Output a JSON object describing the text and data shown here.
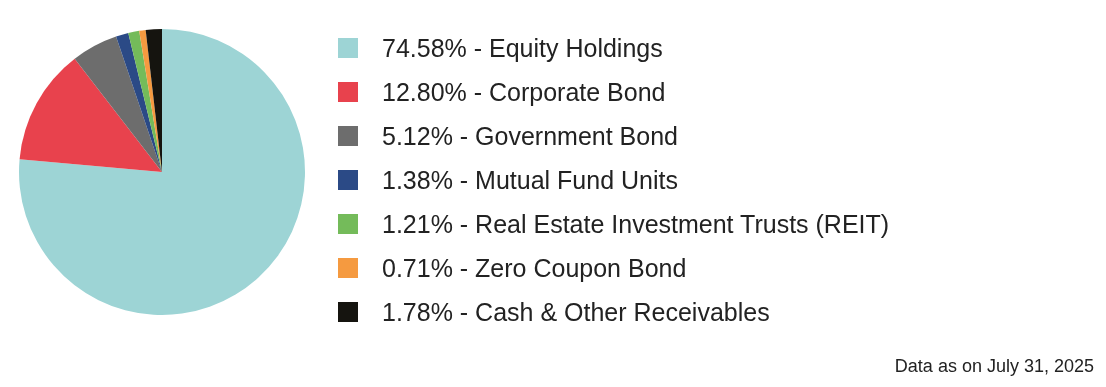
{
  "chart_data": {
    "type": "pie",
    "categories": [
      "Equity Holdings",
      "Corporate Bond",
      "Government Bond",
      "Mutual Fund Units",
      "Real Estate Investment Trusts (REIT)",
      "Zero Coupon Bond",
      "Cash & Other Receivables"
    ],
    "values": [
      74.58,
      12.8,
      5.12,
      1.38,
      1.21,
      0.71,
      1.78
    ],
    "value_labels": [
      "74.58%",
      "12.80%",
      "5.12%",
      "1.38%",
      "1.21%",
      "0.71%",
      "1.78%"
    ],
    "colors": [
      "#9dd4d5",
      "#e8424d",
      "#6d6d6d",
      "#2b4a86",
      "#74bb5a",
      "#f59a40",
      "#15140f"
    ],
    "legend": "right",
    "annotations": [
      "Data as on July 31, 2025"
    ]
  }
}
